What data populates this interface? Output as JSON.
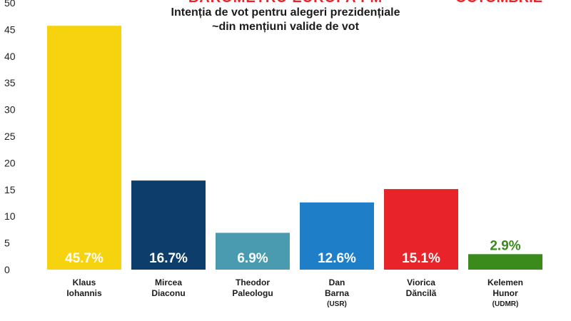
{
  "header": {
    "banner": "BAROMETRU EUROPA FM",
    "right_mark": "OCTOMBRIE"
  },
  "chart_data": {
    "type": "bar",
    "title": "Intenția de vot pentru alegeri prezidențiale",
    "subtitle": "~din mențiuni valide de vot",
    "ylim": [
      0,
      50
    ],
    "yticks": [
      0,
      5,
      10,
      15,
      20,
      25,
      30,
      35,
      40,
      45,
      50
    ],
    "grid": false,
    "categories": [
      {
        "lines": [
          "Klaus",
          "Iohannis"
        ],
        "note": ""
      },
      {
        "lines": [
          "Mircea",
          "Diaconu"
        ],
        "note": ""
      },
      {
        "lines": [
          "Theodor",
          "Paleologu"
        ],
        "note": ""
      },
      {
        "lines": [
          "Dan",
          "Barna"
        ],
        "note": "(USR)"
      },
      {
        "lines": [
          "Viorica",
          "Dăncilă"
        ],
        "note": ""
      },
      {
        "lines": [
          "Kelemen",
          "Hunor"
        ],
        "note": "(UDMR)"
      }
    ],
    "values": [
      45.7,
      16.7,
      6.9,
      12.6,
      15.1,
      2.9
    ],
    "value_labels": [
      "45.7%",
      "16.7%",
      "6.9%",
      "12.6%",
      "15.1%",
      "2.9%"
    ],
    "colors": [
      "#f7d20e",
      "#0d3d6b",
      "#4a9bb0",
      "#1e7ec8",
      "#e8232a",
      "#3a8a1c"
    ],
    "label_colors": [
      "#ffffff",
      "#ffffff",
      "#ffffff",
      "#ffffff",
      "#ffffff",
      "#3a8a1c"
    ]
  }
}
